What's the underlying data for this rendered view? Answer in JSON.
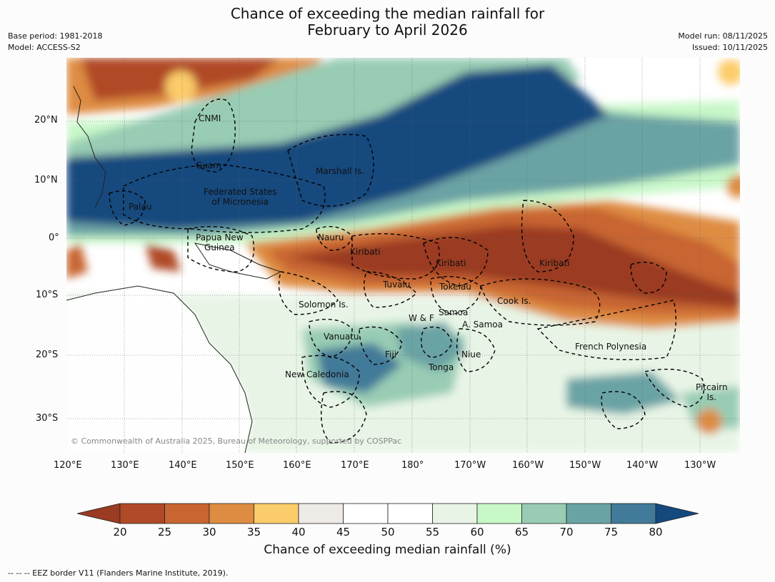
{
  "title": {
    "line1": "Chance of exceeding the median rainfall for",
    "line2": "February to April 2026"
  },
  "meta": {
    "base_period": "Base period: 1981-2018",
    "model": "Model: ACCESS-S2",
    "model_run": "Model run: 08/11/2025",
    "issued": "Issued: 10/11/2025"
  },
  "map": {
    "lat_labels": [
      "20°N",
      "10°N",
      "0°",
      "10°S",
      "20°S",
      "30°S"
    ],
    "lon_labels": [
      "120°E",
      "130°E",
      "140°E",
      "150°E",
      "160°E",
      "170°E",
      "180°",
      "170°W",
      "160°W",
      "150°W",
      "140°W",
      "130°W"
    ],
    "region_labels": [
      "CNMI",
      "Guam",
      "Marshall Is.",
      "Federated States\nof Micronesia",
      "Palau",
      "Papua New\nGuinea",
      "Nauru",
      "Kiribati",
      "Kiribati",
      "Kiribati",
      "Tuvalu",
      "Tokelau",
      "Solomon Is.",
      "Cook Is.",
      "W & F",
      "Samoa",
      "A. Samoa",
      "Vanuatu",
      "Fiji",
      "Niue",
      "Tonga",
      "New Caledonia",
      "French Polynesia",
      "Pitcairn\nIs."
    ],
    "copyright": "© Commonwealth of Australia 2025, Bureau of Meteorology, supported by COSPPac"
  },
  "legend": {
    "ticks": [
      "20",
      "25",
      "30",
      "35",
      "40",
      "45",
      "50",
      "55",
      "60",
      "65",
      "70",
      "75",
      "80"
    ],
    "colors": [
      "#9a3b22",
      "#b04a26",
      "#c86530",
      "#de8c42",
      "#fbcc6a",
      "#eeebe6",
      "#ffffff",
      "#ffffff",
      "#e8f5e6",
      "#c8f7c8",
      "#98ccb4",
      "#6aa3a4",
      "#427a99",
      "#14497e"
    ],
    "title": "Chance of exceeding median rainfall (%)"
  },
  "footer": "--  --  -- EEZ border V11 (Flanders Marine Institute, 2019)."
}
